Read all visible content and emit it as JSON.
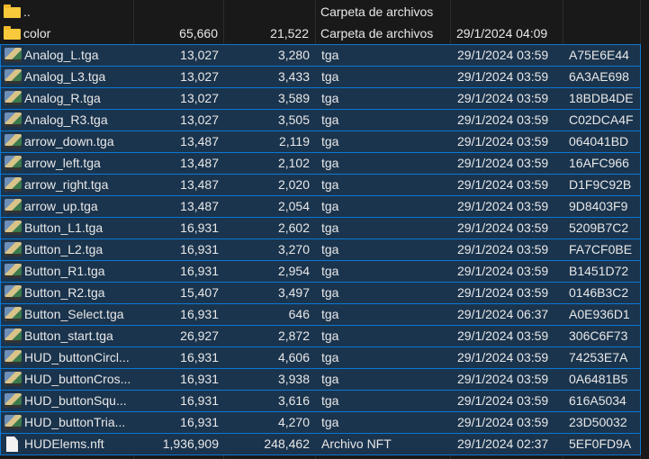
{
  "colors": {
    "selection_bg": "#1b344d",
    "selection_border": "#0a78d4",
    "background": "#191919"
  },
  "rows": [
    {
      "name": "..",
      "size": "",
      "packed": "",
      "type": "Carpeta de archivos",
      "date": "",
      "crc": "",
      "icon": "folder-icon",
      "selected": false
    },
    {
      "name": "color",
      "size": "65,660",
      "packed": "21,522",
      "type": "Carpeta de archivos",
      "date": "29/1/2024 04:09",
      "crc": "",
      "icon": "folder-icon",
      "selected": false
    },
    {
      "name": "Analog_L.tga",
      "size": "13,027",
      "packed": "3,280",
      "type": "tga",
      "date": "29/1/2024 03:59",
      "crc": "A75E6E44",
      "icon": "image-icon",
      "selected": true
    },
    {
      "name": "Analog_L3.tga",
      "size": "13,027",
      "packed": "3,433",
      "type": "tga",
      "date": "29/1/2024 03:59",
      "crc": "6A3AE698",
      "icon": "image-icon",
      "selected": true
    },
    {
      "name": "Analog_R.tga",
      "size": "13,027",
      "packed": "3,589",
      "type": "tga",
      "date": "29/1/2024 03:59",
      "crc": "18BDB4DE",
      "icon": "image-icon",
      "selected": true
    },
    {
      "name": "Analog_R3.tga",
      "size": "13,027",
      "packed": "3,505",
      "type": "tga",
      "date": "29/1/2024 03:59",
      "crc": "C02DCA4F",
      "icon": "image-icon",
      "selected": true
    },
    {
      "name": "arrow_down.tga",
      "size": "13,487",
      "packed": "2,119",
      "type": "tga",
      "date": "29/1/2024 03:59",
      "crc": "064041BD",
      "icon": "image-icon",
      "selected": true
    },
    {
      "name": "arrow_left.tga",
      "size": "13,487",
      "packed": "2,102",
      "type": "tga",
      "date": "29/1/2024 03:59",
      "crc": "16AFC966",
      "icon": "image-icon",
      "selected": true
    },
    {
      "name": "arrow_right.tga",
      "size": "13,487",
      "packed": "2,020",
      "type": "tga",
      "date": "29/1/2024 03:59",
      "crc": "D1F9C92B",
      "icon": "image-icon",
      "selected": true
    },
    {
      "name": "arrow_up.tga",
      "size": "13,487",
      "packed": "2,054",
      "type": "tga",
      "date": "29/1/2024 03:59",
      "crc": "9D8403F9",
      "icon": "image-icon",
      "selected": true
    },
    {
      "name": "Button_L1.tga",
      "size": "16,931",
      "packed": "2,602",
      "type": "tga",
      "date": "29/1/2024 03:59",
      "crc": "5209B7C2",
      "icon": "image-icon",
      "selected": true
    },
    {
      "name": "Button_L2.tga",
      "size": "16,931",
      "packed": "3,270",
      "type": "tga",
      "date": "29/1/2024 03:59",
      "crc": "FA7CF0BE",
      "icon": "image-icon",
      "selected": true
    },
    {
      "name": "Button_R1.tga",
      "size": "16,931",
      "packed": "2,954",
      "type": "tga",
      "date": "29/1/2024 03:59",
      "crc": "B1451D72",
      "icon": "image-icon",
      "selected": true
    },
    {
      "name": "Button_R2.tga",
      "size": "15,407",
      "packed": "3,497",
      "type": "tga",
      "date": "29/1/2024 03:59",
      "crc": "0146B3C2",
      "icon": "image-icon",
      "selected": true
    },
    {
      "name": "Button_Select.tga",
      "size": "16,931",
      "packed": "646",
      "type": "tga",
      "date": "29/1/2024 06:37",
      "crc": "A0E936D1",
      "icon": "image-icon",
      "selected": true
    },
    {
      "name": "Button_start.tga",
      "size": "26,927",
      "packed": "2,872",
      "type": "tga",
      "date": "29/1/2024 03:59",
      "crc": "306C6F73",
      "icon": "image-icon",
      "selected": true
    },
    {
      "name": "HUD_buttonCircl...",
      "size": "16,931",
      "packed": "4,606",
      "type": "tga",
      "date": "29/1/2024 03:59",
      "crc": "74253E7A",
      "icon": "image-icon",
      "selected": true
    },
    {
      "name": "HUD_buttonCros...",
      "size": "16,931",
      "packed": "3,938",
      "type": "tga",
      "date": "29/1/2024 03:59",
      "crc": "0A6481B5",
      "icon": "image-icon",
      "selected": true
    },
    {
      "name": "HUD_buttonSqu...",
      "size": "16,931",
      "packed": "3,616",
      "type": "tga",
      "date": "29/1/2024 03:59",
      "crc": "616A5034",
      "icon": "image-icon",
      "selected": true
    },
    {
      "name": "HUD_buttonTria...",
      "size": "16,931",
      "packed": "4,270",
      "type": "tga",
      "date": "29/1/2024 03:59",
      "crc": "23D50032",
      "icon": "image-icon",
      "selected": true
    },
    {
      "name": "HUDElems.nft",
      "size": "1,936,909",
      "packed": "248,462",
      "type": "Archivo NFT",
      "date": "29/1/2024 02:37",
      "crc": "5EF0FD9A",
      "icon": "file-icon",
      "selected": true
    }
  ]
}
